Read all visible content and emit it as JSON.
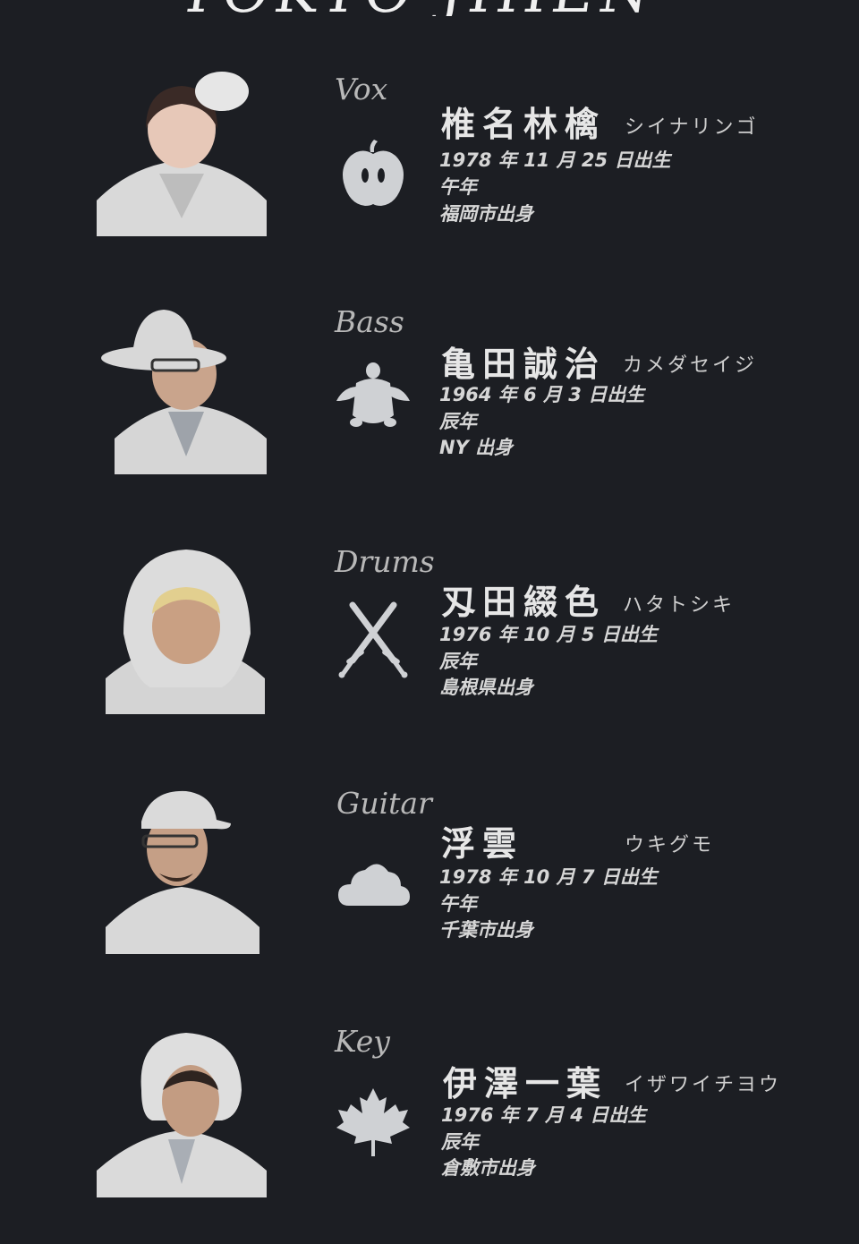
{
  "header": {
    "logo_text": "TOKYO JIHEN"
  },
  "colors": {
    "background": "#1c1e23",
    "icon_fill": "#cfd1d4",
    "text": "#dcdcdc"
  },
  "members": [
    {
      "role": "Vox",
      "icon": "apple-icon",
      "name_kanji": "椎名林檎",
      "name_kana": "シイナリンゴ",
      "birth": "1978 年 11 月 25 日出生",
      "zodiac": "午年",
      "origin": "福岡市出身"
    },
    {
      "role": "Bass",
      "icon": "turtle-icon",
      "name_kanji": "亀田誠治",
      "name_kana": "カメダセイジ",
      "birth": "1964 年 6 月 3 日出生",
      "zodiac": "辰年",
      "origin": "NY 出身"
    },
    {
      "role": "Drums",
      "icon": "crossed-swords-icon",
      "name_kanji": "刄田綴色",
      "name_kana": "ハタトシキ",
      "birth": "1976 年 10 月 5 日出生",
      "zodiac": "辰年",
      "origin": "島根県出身"
    },
    {
      "role": "Guitar",
      "icon": "cloud-icon",
      "name_kanji": "浮雲",
      "name_kana": "ウキグモ",
      "birth": "1978 年 10 月 7 日出生",
      "zodiac": "午年",
      "origin": "千葉市出身"
    },
    {
      "role": "Key",
      "icon": "maple-leaf-icon",
      "name_kanji": "伊澤一葉",
      "name_kana": "イザワイチヨウ",
      "birth": "1976 年 7 月 4 日出生",
      "zodiac": "辰年",
      "origin": "倉敷市出身"
    }
  ]
}
